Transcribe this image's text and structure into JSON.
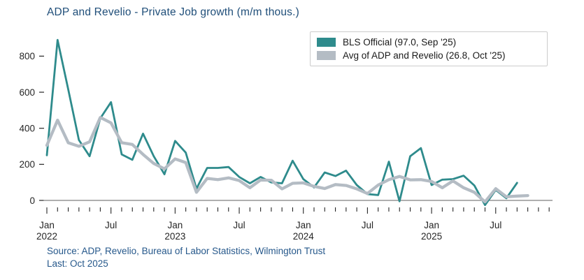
{
  "footer": {
    "source": "Source: ADP, Revelio, Bureau of Labor Statistics, Wilmington Trust",
    "last": "Last: Oct 2025"
  },
  "colors": {
    "title_text": "#1f4e79",
    "footer_text": "#26588b",
    "axis_line": "#7f7f7f",
    "tick_text": "#262626",
    "legend_border": "#cccccc"
  },
  "chart_data": {
    "type": "line",
    "title": "ADP and Revelio - Private Job growth (m/m thous.)",
    "x_start": "Jan 2022",
    "frequency": "monthly",
    "xlabel": "",
    "ylabel": "",
    "ylim": [
      -60,
      935
    ],
    "y_ticks": [
      0,
      200,
      400,
      600,
      800
    ],
    "x_tick_count": 48,
    "x_ticks": [
      {
        "i": 0,
        "label": "Jan",
        "year": "2022"
      },
      {
        "i": 6,
        "label": "Jul"
      },
      {
        "i": 12,
        "label": "Jan",
        "year": "2023"
      },
      {
        "i": 18,
        "label": "Jul"
      },
      {
        "i": 24,
        "label": "Jan",
        "year": "2024"
      },
      {
        "i": 30,
        "label": "Jul"
      },
      {
        "i": 36,
        "label": "Jan",
        "year": "2025"
      },
      {
        "i": 42,
        "label": "Jul"
      }
    ],
    "grid": false,
    "legend_position": "upper right",
    "series": [
      {
        "id": "bls",
        "name": "BLS Official (97.0, Sep '25)",
        "color": "#2e8b8c",
        "last_point": "Sep 2025",
        "last_value": 97.0,
        "values": [
          250,
          890,
          615,
          335,
          245,
          455,
          545,
          255,
          225,
          370,
          245,
          145,
          330,
          265,
          65,
          180,
          180,
          185,
          130,
          95,
          130,
          100,
          95,
          220,
          118,
          72,
          155,
          135,
          165,
          85,
          35,
          30,
          215,
          -5,
          245,
          290,
          85,
          115,
          118,
          137,
          83,
          -26,
          58,
          12,
          97
        ]
      },
      {
        "id": "avg",
        "name": "Avg of ADP and Revelio (26.8, Oct '25)",
        "color": "#b4bcc4",
        "last_point": "Oct 2025",
        "last_value": 26.8,
        "values": [
          305,
          445,
          320,
          300,
          325,
          460,
          430,
          320,
          310,
          255,
          205,
          175,
          230,
          210,
          45,
          122,
          115,
          125,
          110,
          70,
          113,
          112,
          64,
          95,
          97,
          78,
          66,
          88,
          83,
          64,
          38,
          85,
          115,
          133,
          114,
          115,
          105,
          70,
          108,
          70,
          45,
          -8,
          65,
          20,
          24,
          26.8
        ]
      }
    ]
  }
}
